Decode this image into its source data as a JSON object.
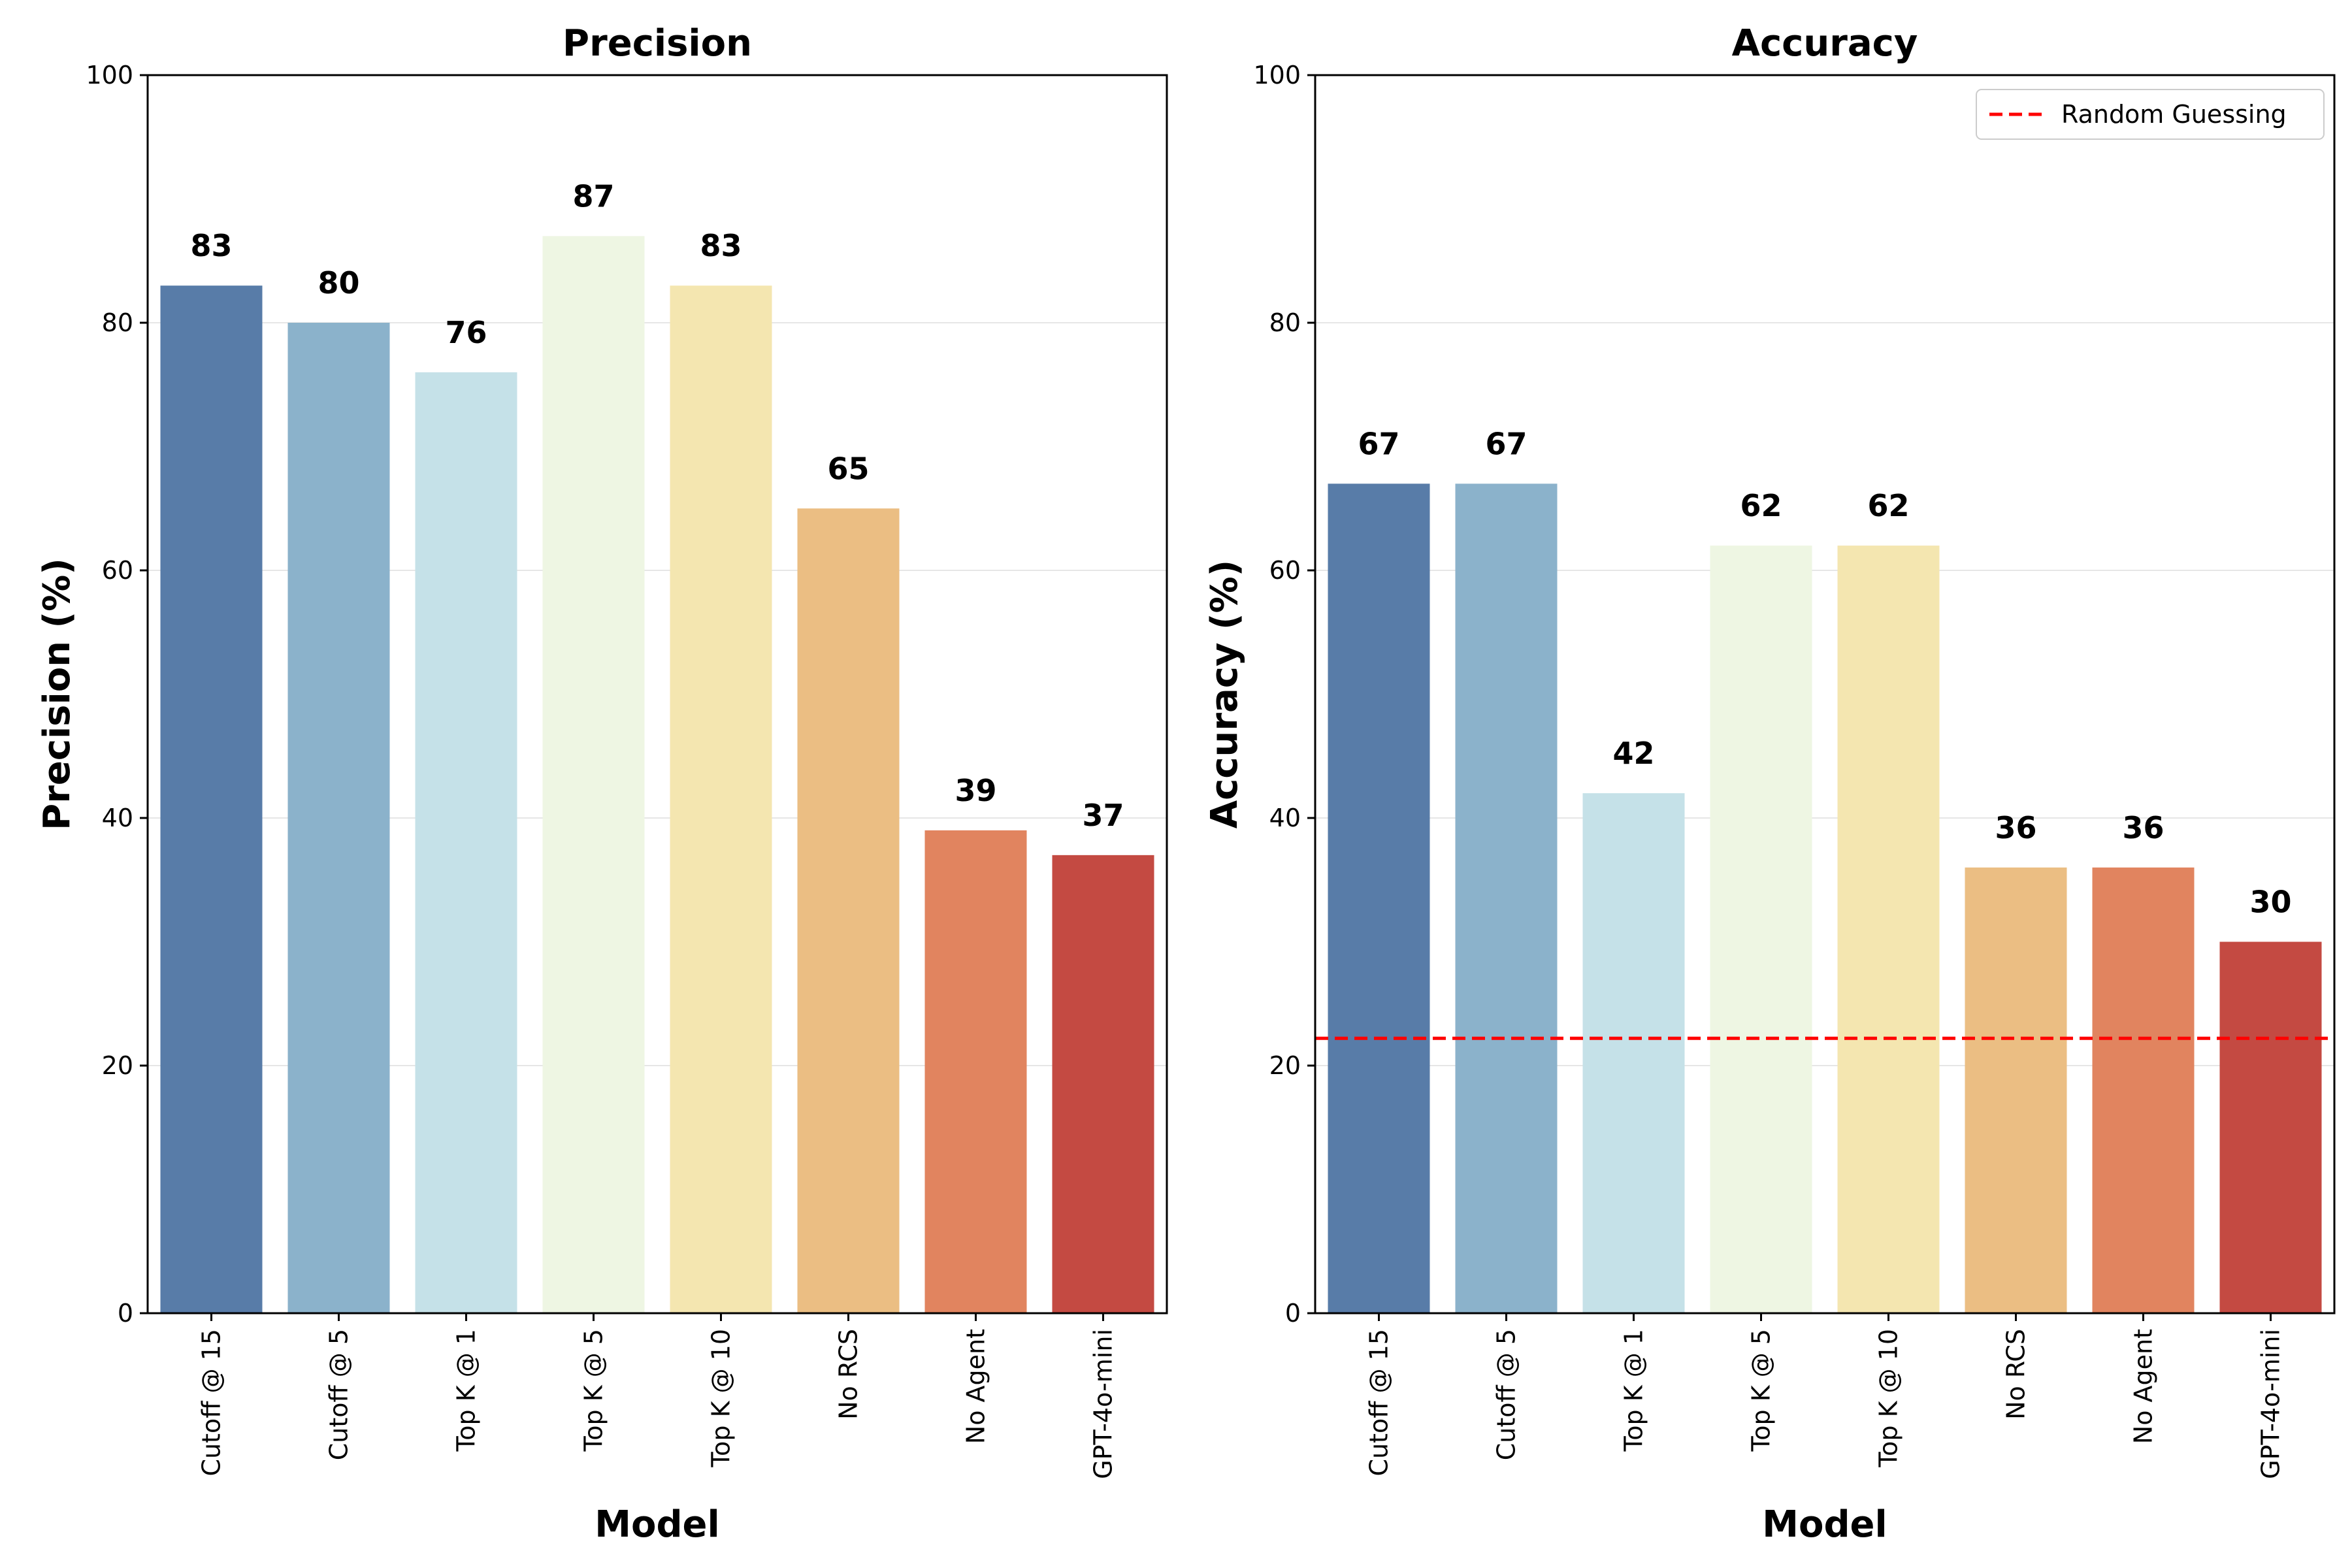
{
  "chart_data": [
    {
      "type": "bar",
      "title": "Precision",
      "xlabel": "Model",
      "ylabel": "Precision (%)",
      "ylim": [
        0,
        100
      ],
      "yticks": [
        0,
        20,
        40,
        60,
        80,
        100
      ],
      "grid": "y",
      "categories": [
        "Cutoff @ 15",
        "Cutoff @ 5",
        "Top K @ 1",
        "Top K @ 5",
        "Top K @ 10",
        "No RCS",
        "No Agent",
        "GPT-4o-mini"
      ],
      "values": [
        83,
        80,
        76,
        87,
        83,
        65,
        39,
        37
      ],
      "colors": [
        "#587ca8",
        "#8bb2cb",
        "#c5e1e8",
        "#eef6e3",
        "#f4e6b0",
        "#ebbe83",
        "#e1845f",
        "#c44a42"
      ]
    },
    {
      "type": "bar",
      "title": "Accuracy",
      "xlabel": "Model",
      "ylabel": "Accuracy (%)",
      "ylim": [
        0,
        100
      ],
      "yticks": [
        0,
        20,
        40,
        60,
        80,
        100
      ],
      "grid": "y",
      "categories": [
        "Cutoff @ 15",
        "Cutoff @ 5",
        "Top K @ 1",
        "Top K @ 5",
        "Top K @ 10",
        "No RCS",
        "No Agent",
        "GPT-4o-mini"
      ],
      "values": [
        67,
        67,
        42,
        62,
        62,
        36,
        36,
        30
      ],
      "colors": [
        "#587ca8",
        "#8bb2cb",
        "#c5e1e8",
        "#eef6e3",
        "#f4e6b0",
        "#ebbe83",
        "#e1845f",
        "#c44a42"
      ],
      "reference_line": {
        "label": "Random Guessing",
        "value": 22.2,
        "color": "#ff0000",
        "style": "dashed"
      },
      "legend": {
        "position": "top-right",
        "entries": [
          "Random Guessing"
        ]
      }
    }
  ]
}
